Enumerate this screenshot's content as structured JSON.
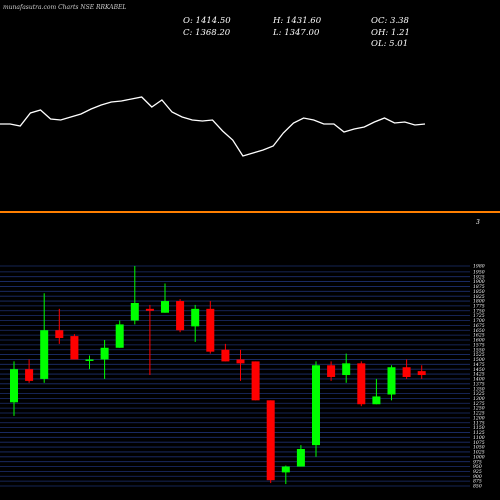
{
  "header": {
    "watermark": "munafasutra.com Charts NSE RRKABEL",
    "o": "O: 1414.50",
    "h": "H: 1431.60",
    "oc": "OC: 3.38",
    "c": "C: 1368.20",
    "l": "L: 1347.00",
    "oh": "OH: 1.21",
    "ol": "OL: 5.01"
  },
  "indicator_panel": {
    "value_label": "3"
  },
  "colors": {
    "up": "#00ff00",
    "down": "#ff0000",
    "grid": "#1c2f6e",
    "separator": "#ff7f00",
    "line": "#ffffff"
  },
  "chart_data": {
    "type": "candlestick",
    "ylim": [
      850,
      1980
    ],
    "yticks": [
      1980,
      1950,
      1925,
      1900,
      1875,
      1850,
      1825,
      1800,
      1775,
      1750,
      1725,
      1700,
      1675,
      1650,
      1625,
      1600,
      1575,
      1550,
      1525,
      1500,
      1475,
      1450,
      1425,
      1400,
      1375,
      1350,
      1325,
      1300,
      1275,
      1250,
      1225,
      1200,
      1175,
      1150,
      1125,
      1100,
      1075,
      1050,
      1025,
      1000,
      975,
      950,
      925,
      900,
      875,
      850
    ],
    "candles": [
      {
        "o": 1280,
        "h": 1490,
        "l": 1210,
        "c": 1450
      },
      {
        "o": 1450,
        "h": 1500,
        "l": 1380,
        "c": 1390
      },
      {
        "o": 1400,
        "h": 1840,
        "l": 1380,
        "c": 1650
      },
      {
        "o": 1650,
        "h": 1760,
        "l": 1580,
        "c": 1610
      },
      {
        "o": 1620,
        "h": 1630,
        "l": 1500,
        "c": 1500
      },
      {
        "o": 1500,
        "h": 1520,
        "l": 1450,
        "c": 1500
      },
      {
        "o": 1500,
        "h": 1600,
        "l": 1400,
        "c": 1560
      },
      {
        "o": 1560,
        "h": 1700,
        "l": 1560,
        "c": 1680
      },
      {
        "o": 1700,
        "h": 1980,
        "l": 1680,
        "c": 1790
      },
      {
        "o": 1760,
        "h": 1780,
        "l": 1420,
        "c": 1750
      },
      {
        "o": 1740,
        "h": 1890,
        "l": 1740,
        "c": 1800
      },
      {
        "o": 1800,
        "h": 1810,
        "l": 1640,
        "c": 1650
      },
      {
        "o": 1670,
        "h": 1780,
        "l": 1590,
        "c": 1760
      },
      {
        "o": 1760,
        "h": 1800,
        "l": 1530,
        "c": 1540
      },
      {
        "o": 1550,
        "h": 1580,
        "l": 1490,
        "c": 1490
      },
      {
        "o": 1500,
        "h": 1550,
        "l": 1390,
        "c": 1480
      },
      {
        "o": 1490,
        "h": 1490,
        "l": 1290,
        "c": 1290
      },
      {
        "o": 1290,
        "h": 1290,
        "l": 865,
        "c": 880
      },
      {
        "o": 920,
        "h": 955,
        "l": 860,
        "c": 950
      },
      {
        "o": 950,
        "h": 1060,
        "l": 950,
        "c": 1040
      },
      {
        "o": 1060,
        "h": 1490,
        "l": 1000,
        "c": 1470
      },
      {
        "o": 1470,
        "h": 1490,
        "l": 1390,
        "c": 1410
      },
      {
        "o": 1420,
        "h": 1530,
        "l": 1380,
        "c": 1480
      },
      {
        "o": 1480,
        "h": 1490,
        "l": 1260,
        "c": 1270
      },
      {
        "o": 1270,
        "h": 1400,
        "l": 1270,
        "c": 1310
      },
      {
        "o": 1320,
        "h": 1470,
        "l": 1290,
        "c": 1460
      },
      {
        "o": 1460,
        "h": 1500,
        "l": 1400,
        "c": 1410
      },
      {
        "o": 1440,
        "h": 1470,
        "l": 1400,
        "c": 1420
      }
    ],
    "indicator": [
      92,
      95,
      78,
      62,
      60,
      75,
      72,
      55,
      53,
      42,
      36,
      34,
      30,
      22,
      37,
      46,
      57,
      57,
      66,
      84,
      87,
      88,
      112,
      116,
      120,
      128,
      138,
      144,
      151,
      160,
      182,
      186,
      190,
      198,
      203,
      206,
      218,
      222,
      244,
      276,
      292,
      296,
      300,
      306,
      323,
      358,
      371,
      377,
      397,
      418,
      433,
      480
    ]
  }
}
